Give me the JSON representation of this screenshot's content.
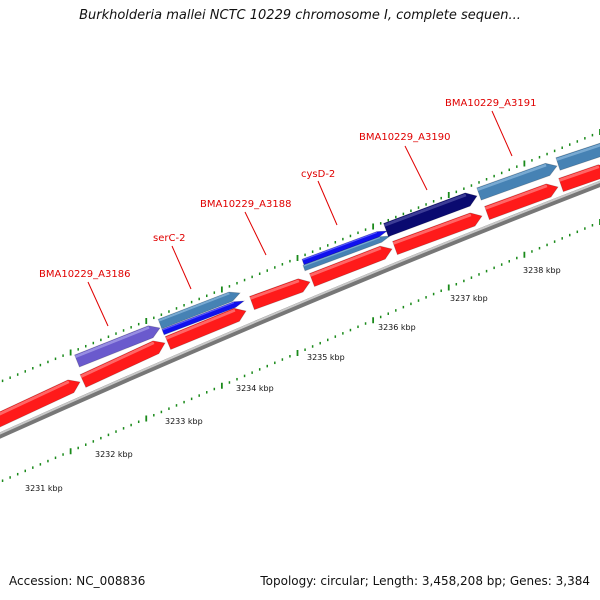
{
  "title": "Burkholderia mallei NCTC 10229 chromosome I, complete sequen...",
  "footer": {
    "accession": "Accession: NC_008836",
    "info": "Topology: circular; Length: 3,458,208 bp; Genes: 3,384"
  },
  "gene_labels": [
    "BMA10229_A3186",
    "serC-2",
    "BMA10229_A3188",
    "cysD-2",
    "BMA10229_A3190",
    "BMA10229_A3191"
  ],
  "kbp_labels": [
    "3231 kbp",
    "3232 kbp",
    "3233 kbp",
    "3234 kbp",
    "3235 kbp",
    "3236 kbp",
    "3237 kbp",
    "3238 kbp"
  ],
  "colors": {
    "cds_red": "#ff1a1a",
    "backbone": "#888888",
    "tick": "#1a8a1a",
    "label": "#e00000",
    "slate_blue": "#6a5acd",
    "steel_blue": "#4682b4",
    "blue": "#1010ee",
    "navy": "#0a0a70"
  }
}
